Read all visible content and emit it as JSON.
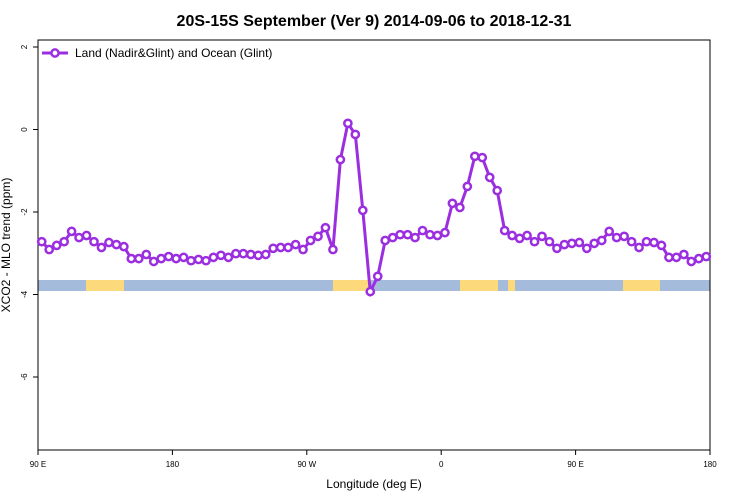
{
  "chart_data": {
    "type": "line",
    "title": "20S-15S September (Ver 9)   2014-09-06 to 2018-12-31",
    "xlabel": "Longitude (deg E)",
    "ylabel": "XCO2 - MLO trend (ppm)",
    "xlim": [
      90,
      540
    ],
    "xticks": [
      {
        "value": 90,
        "label": "90 E"
      },
      {
        "value": 180,
        "label": "180"
      },
      {
        "value": 270,
        "label": "90 W"
      },
      {
        "value": 360,
        "label": "0"
      },
      {
        "value": 450,
        "label": "90 E"
      },
      {
        "value": 540,
        "label": "180"
      }
    ],
    "ylim": [
      -7.77,
      2.17
    ],
    "yticks": [
      -6,
      -4,
      -2,
      0,
      2
    ],
    "legend": "top-left",
    "x": [
      92.5,
      97.5,
      102.5,
      107.5,
      112.5,
      117.5,
      122.5,
      127.5,
      132.5,
      137.5,
      142.5,
      147.5,
      152.5,
      157.5,
      162.5,
      167.5,
      172.5,
      177.5,
      182.5,
      187.5,
      192.5,
      197.5,
      202.5,
      207.5,
      212.5,
      217.5,
      222.5,
      227.5,
      232.5,
      237.5,
      242.5,
      247.5,
      252.5,
      257.5,
      262.5,
      267.5,
      272.5,
      277.5,
      282.5,
      287.5,
      292.5,
      297.5,
      302.5,
      307.5,
      312.5,
      317.5,
      322.5,
      327.5,
      332.5,
      337.5,
      342.5,
      347.5,
      352.5,
      357.5,
      362.5,
      367.5,
      372.5,
      377.5,
      382.5,
      387.5,
      392.5,
      397.5,
      402.5,
      407.5,
      412.5,
      417.5,
      422.5,
      427.5,
      432.5,
      437.5,
      442.5,
      447.5,
      452.5,
      457.5,
      462.5,
      467.5,
      472.5,
      477.5,
      482.5,
      487.5,
      492.5,
      497.5,
      502.5,
      507.5,
      512.5,
      517.5,
      522.5,
      527.5,
      532.5,
      537.5
    ],
    "series": [
      {
        "name": "Land (Nadir&Glint) and Ocean (Glint)",
        "color": "#9b2fe0",
        "values": [
          -2.72,
          -2.91,
          -2.81,
          -2.72,
          -2.47,
          -2.62,
          -2.57,
          -2.72,
          -2.86,
          -2.74,
          -2.79,
          -2.84,
          -3.13,
          -3.13,
          -3.03,
          -3.2,
          -3.13,
          -3.08,
          -3.13,
          -3.1,
          -3.18,
          -3.15,
          -3.18,
          -3.1,
          -3.05,
          -3.1,
          -3.01,
          -3.01,
          -3.03,
          -3.05,
          -3.03,
          -2.88,
          -2.86,
          -2.86,
          -2.79,
          -2.91,
          -2.69,
          -2.59,
          -2.38,
          -2.91,
          -0.73,
          0.15,
          -0.12,
          -1.96,
          -3.93,
          -3.56,
          -2.69,
          -2.62,
          -2.55,
          -2.55,
          -2.62,
          -2.45,
          -2.55,
          -2.57,
          -2.5,
          -1.79,
          -1.89,
          -1.38,
          -0.65,
          -0.68,
          -1.16,
          -1.48,
          -2.45,
          -2.57,
          -2.64,
          -2.57,
          -2.72,
          -2.59,
          -2.72,
          -2.88,
          -2.79,
          -2.76,
          -2.74,
          -2.88,
          -2.76,
          -2.69,
          -2.47,
          -2.62,
          -2.59,
          -2.72,
          -2.86,
          -2.72,
          -2.74,
          -2.81,
          -3.1,
          -3.1,
          -3.03,
          -3.2,
          -3.13,
          -3.08
        ]
      }
    ]
  }
}
